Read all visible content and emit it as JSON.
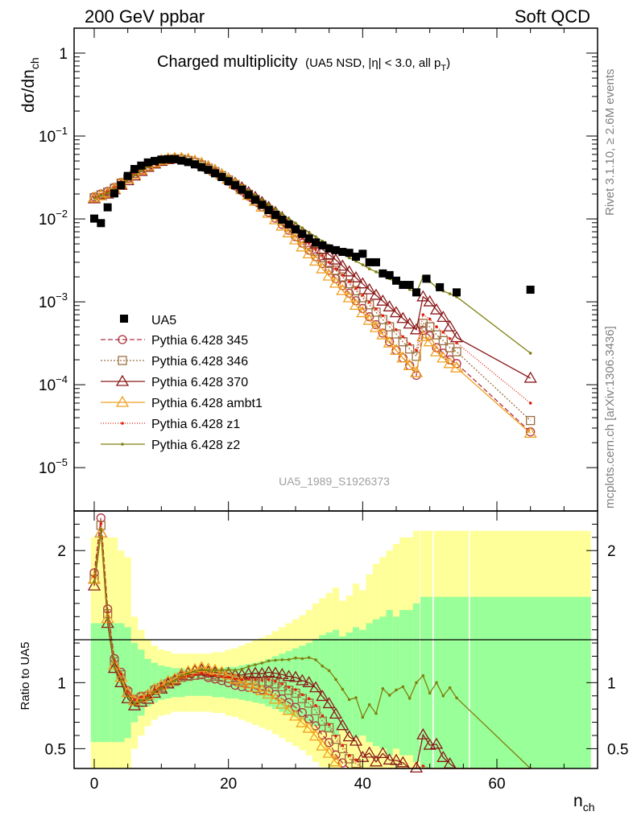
{
  "header": {
    "left": "200 GeV ppbar",
    "right": "Soft QCD",
    "side_top": "Rivet 3.1.10, ≥ 2.6M events",
    "side_bottom": "mcplots.cern.ch [arXiv:1306.3436]"
  },
  "chart_data": {
    "type": "scatter",
    "title_main": "Charged multiplicity",
    "title_sub": "(UA5 NSD, |η| < 3.0, all p",
    "title_sub_sub": "T",
    "title_sub_end": ")",
    "ylabel_main": "dσ/dn",
    "ylabel_sub": "ch",
    "xlabel_main": "n",
    "xlabel_sub": "ch",
    "ratio_ylabel": "Ratio to UA5",
    "watermark": "UA5_1989_S1926373",
    "y_scale": "log",
    "x_range": [
      -3,
      75
    ],
    "y_range": [
      3e-06,
      2
    ],
    "ratio_range": [
      0.35,
      2.3
    ],
    "x_ticks": [
      "0",
      "20",
      "40",
      "60"
    ],
    "x_tick_values": [
      0,
      20,
      40,
      60
    ],
    "y_ticks": [
      {
        "value": 1,
        "base": "1",
        "exp": ""
      },
      {
        "value": 0.1,
        "base": "10",
        "exp": "−1"
      },
      {
        "value": 0.01,
        "base": "10",
        "exp": "−2"
      },
      {
        "value": 0.001,
        "base": "10",
        "exp": "−3"
      },
      {
        "value": 0.0001,
        "base": "10",
        "exp": "−4"
      },
      {
        "value": 1e-05,
        "base": "10",
        "exp": "−5"
      }
    ],
    "ratio_ticks": [
      "2",
      "1",
      "0.5"
    ],
    "ratio_tick_values": [
      2,
      1,
      0.5
    ],
    "data": {
      "name": "UA5",
      "x": [
        0,
        1,
        2,
        3,
        4,
        5,
        6,
        7,
        8,
        9,
        10,
        11,
        12,
        13,
        14,
        15,
        16,
        17,
        18,
        19,
        20,
        21,
        22,
        23,
        24,
        25,
        26,
        27,
        28,
        29,
        30,
        31,
        32,
        33,
        34,
        35,
        36,
        37,
        38,
        39,
        40,
        41,
        42,
        43,
        44,
        45,
        46,
        47,
        48,
        49.5,
        51.5,
        54,
        65
      ],
      "y": [
        0.0101,
        0.0089,
        0.0138,
        0.0203,
        0.0255,
        0.033,
        0.04,
        0.044,
        0.048,
        0.05,
        0.052,
        0.0525,
        0.0525,
        0.0505,
        0.0485,
        0.0455,
        0.042,
        0.039,
        0.0355,
        0.032,
        0.0285,
        0.0255,
        0.0225,
        0.0195,
        0.017,
        0.0148,
        0.0128,
        0.0112,
        0.0098,
        0.0086,
        0.0075,
        0.0066,
        0.0058,
        0.0052,
        0.0048,
        0.0044,
        0.0042,
        0.004,
        0.0039,
        0.0035,
        0.0038,
        0.003,
        0.003,
        0.0022,
        0.0021,
        0.0018,
        0.0016,
        0.0016,
        0.0013,
        0.0019,
        0.0015,
        0.0013,
        0.0014
      ],
      "band_inner_upper": [
        1.45,
        1.45,
        1.45,
        1.45,
        1.45,
        1.42,
        1.3,
        1.25,
        1.18,
        1.15,
        1.13,
        1.12,
        1.11,
        1.11,
        1.1,
        1.1,
        1.1,
        1.1,
        1.11,
        1.11,
        1.12,
        1.12,
        1.13,
        1.14,
        1.15,
        1.16,
        1.18,
        1.2,
        1.22,
        1.24,
        1.26,
        1.28,
        1.3,
        1.33,
        1.36,
        1.38,
        1.4,
        1.35,
        1.38,
        1.42,
        1.4,
        1.45,
        1.48,
        1.5,
        1.55,
        1.5,
        1.55,
        1.55,
        1.6,
        1.65,
        1.65,
        1.65,
        1.65
      ],
      "band_outer_upper": [
        2.1,
        2.1,
        2.1,
        2.1,
        2.0,
        1.95,
        1.5,
        1.4,
        1.33,
        1.28,
        1.25,
        1.24,
        1.22,
        1.22,
        1.22,
        1.22,
        1.22,
        1.22,
        1.23,
        1.23,
        1.25,
        1.26,
        1.28,
        1.3,
        1.32,
        1.34,
        1.36,
        1.39,
        1.42,
        1.45,
        1.48,
        1.51,
        1.55,
        1.6,
        1.64,
        1.68,
        1.72,
        1.62,
        1.66,
        1.75,
        1.7,
        1.82,
        1.9,
        1.95,
        2.0,
        2.05,
        2.1,
        2.1,
        2.15,
        2.15,
        2.15,
        2.15,
        2.15
      ]
    },
    "series": [
      {
        "name": "Pythia 6.428 345",
        "color": "#b03040",
        "marker": "circle",
        "dash": "6,3",
        "x": [
          0,
          1,
          2,
          3,
          4,
          5,
          6,
          7,
          8,
          9,
          10,
          11,
          12,
          13,
          14,
          15,
          16,
          17,
          18,
          19,
          20,
          21,
          22,
          23,
          24,
          25,
          26,
          27,
          28,
          29,
          30,
          31,
          32,
          33,
          34,
          35,
          36,
          37,
          38,
          39,
          40,
          41,
          42,
          43,
          44,
          45,
          46,
          47,
          48,
          49,
          50,
          51,
          52,
          53,
          54,
          65
        ],
        "y": [
          0.0185,
          0.02,
          0.0215,
          0.024,
          0.0275,
          0.031,
          0.035,
          0.0395,
          0.0435,
          0.0475,
          0.0505,
          0.0525,
          0.0535,
          0.053,
          0.051,
          0.048,
          0.0445,
          0.0405,
          0.0365,
          0.0325,
          0.0285,
          0.025,
          0.0218,
          0.0188,
          0.0162,
          0.014,
          0.012,
          0.0102,
          0.0086,
          0.0073,
          0.0061,
          0.0051,
          0.0042,
          0.0035,
          0.0029,
          0.0024,
          0.0019,
          0.00157,
          0.00127,
          0.00103,
          0.00083,
          0.00066,
          0.00053,
          0.00042,
          0.00033,
          0.00026,
          0.00021,
          0.00017,
          0.00013,
          0.00045,
          0.00039,
          0.00028,
          0.00024,
          0.0002,
          0.00018,
          2.7e-05
        ]
      },
      {
        "name": "Pythia 6.428 346",
        "color": "#9a7040",
        "marker": "square",
        "dash": "2,2",
        "x": [
          0,
          1,
          2,
          3,
          4,
          5,
          6,
          7,
          8,
          9,
          10,
          11,
          12,
          13,
          14,
          15,
          16,
          17,
          18,
          19,
          20,
          21,
          22,
          23,
          24,
          25,
          26,
          27,
          28,
          29,
          30,
          31,
          32,
          33,
          34,
          35,
          36,
          37,
          38,
          39,
          40,
          41,
          42,
          43,
          44,
          45,
          46,
          47,
          48,
          49,
          50,
          51,
          52,
          53,
          54,
          65
        ],
        "y": [
          0.018,
          0.0195,
          0.021,
          0.0235,
          0.027,
          0.0305,
          0.0345,
          0.039,
          0.043,
          0.047,
          0.05,
          0.052,
          0.053,
          0.0525,
          0.0508,
          0.048,
          0.0448,
          0.041,
          0.0372,
          0.0333,
          0.0295,
          0.026,
          0.0228,
          0.0198,
          0.0172,
          0.0149,
          0.0129,
          0.0111,
          0.0095,
          0.0081,
          0.0069,
          0.0058,
          0.0049,
          0.0041,
          0.0034,
          0.0029,
          0.0024,
          0.002,
          0.00165,
          0.00136,
          0.00112,
          0.00092,
          0.00075,
          0.00061,
          0.0005,
          0.00041,
          0.00033,
          0.00027,
          0.00022,
          0.00055,
          0.0005,
          0.0004,
          0.00034,
          0.00028,
          0.00025,
          3.7e-05
        ]
      },
      {
        "name": "Pythia 6.428 370",
        "color": "#8b1a1a",
        "marker": "triangle",
        "dash": "",
        "x": [
          0,
          1,
          2,
          3,
          4,
          5,
          6,
          7,
          8,
          9,
          10,
          11,
          12,
          13,
          14,
          15,
          16,
          17,
          18,
          19,
          20,
          21,
          22,
          23,
          24,
          25,
          26,
          27,
          28,
          29,
          30,
          31,
          32,
          33,
          34,
          35,
          36,
          37,
          38,
          39,
          40,
          41,
          42,
          43,
          44,
          45,
          46,
          47,
          48,
          49,
          50,
          51,
          52,
          53,
          54,
          65
        ],
        "y": [
          0.0175,
          0.019,
          0.02,
          0.0225,
          0.0255,
          0.029,
          0.033,
          0.0375,
          0.042,
          0.046,
          0.0495,
          0.052,
          0.0535,
          0.0535,
          0.052,
          0.0495,
          0.046,
          0.0422,
          0.0382,
          0.0343,
          0.0305,
          0.027,
          0.0238,
          0.0208,
          0.0182,
          0.0158,
          0.0138,
          0.012,
          0.0104,
          0.009,
          0.0078,
          0.0067,
          0.0058,
          0.005,
          0.0043,
          0.0037,
          0.0032,
          0.0027,
          0.0023,
          0.00195,
          0.00165,
          0.0014,
          0.0012,
          0.00102,
          0.00087,
          0.00074,
          0.00063,
          0.00054,
          0.00046,
          0.00115,
          0.001,
          0.0008,
          0.00065,
          0.0005,
          0.00037,
          0.00012
        ]
      },
      {
        "name": "Pythia 6.428 ambt1",
        "color": "#f0a020",
        "marker": "triangle",
        "dash": "",
        "x": [
          0,
          1,
          2,
          3,
          4,
          5,
          6,
          7,
          8,
          9,
          10,
          11,
          12,
          13,
          14,
          15,
          16,
          17,
          18,
          19,
          20,
          21,
          22,
          23,
          24,
          25,
          26,
          27,
          28,
          29,
          30,
          31,
          32,
          33,
          34,
          35,
          36,
          37,
          38,
          39,
          40,
          41,
          42,
          43,
          44,
          45,
          46,
          47,
          48,
          49,
          50,
          51,
          52,
          53,
          54,
          65
        ],
        "y": [
          0.018,
          0.019,
          0.0205,
          0.023,
          0.0265,
          0.0305,
          0.0345,
          0.039,
          0.0435,
          0.0475,
          0.051,
          0.053,
          0.054,
          0.0538,
          0.0525,
          0.05,
          0.0468,
          0.043,
          0.0388,
          0.0345,
          0.0302,
          0.0262,
          0.0226,
          0.0193,
          0.0164,
          0.0139,
          0.0117,
          0.0098,
          0.0082,
          0.0068,
          0.0056,
          0.0046,
          0.0038,
          0.0031,
          0.0025,
          0.00205,
          0.00168,
          0.00137,
          0.00112,
          0.00091,
          0.00074,
          0.0006,
          0.00049,
          0.0004,
          0.00032,
          0.00026,
          0.00021,
          0.00017,
          0.00014,
          0.00038,
          0.00033,
          0.00025,
          0.00021,
          0.00018,
          0.00016,
          2.6e-05
        ]
      },
      {
        "name": "Pythia 6.428 z1",
        "color": "#e02010",
        "marker": "dot",
        "dash": "1,2",
        "x": [
          0,
          1,
          2,
          3,
          4,
          5,
          6,
          7,
          8,
          9,
          10,
          11,
          12,
          13,
          14,
          15,
          16,
          17,
          18,
          19,
          20,
          21,
          22,
          23,
          24,
          25,
          26,
          27,
          28,
          29,
          30,
          31,
          32,
          33,
          34,
          35,
          36,
          37,
          38,
          39,
          40,
          41,
          42,
          43,
          44,
          45,
          46,
          47,
          48,
          49,
          50,
          51,
          52,
          53,
          54,
          65
        ],
        "y": [
          0.0182,
          0.0196,
          0.0212,
          0.0237,
          0.0272,
          0.0308,
          0.0348,
          0.0392,
          0.0432,
          0.0472,
          0.0503,
          0.0522,
          0.0532,
          0.0528,
          0.051,
          0.0482,
          0.045,
          0.0412,
          0.0374,
          0.0335,
          0.0297,
          0.0262,
          0.023,
          0.02,
          0.0174,
          0.0151,
          0.0131,
          0.0113,
          0.0097,
          0.0083,
          0.0071,
          0.006,
          0.0051,
          0.0043,
          0.0036,
          0.003,
          0.0025,
          0.0021,
          0.00175,
          0.00145,
          0.0012,
          0.00099,
          0.00082,
          0.00068,
          0.00056,
          0.00046,
          0.00038,
          0.00031,
          0.00026,
          0.0007,
          0.00062,
          0.0005,
          0.00043,
          0.00036,
          0.00032,
          6e-05
        ]
      },
      {
        "name": "Pythia 6.428 z2",
        "color": "#808010",
        "marker": "dot",
        "dash": "",
        "x": [
          0,
          1,
          2,
          3,
          4,
          5,
          6,
          7,
          8,
          9,
          10,
          11,
          12,
          13,
          14,
          15,
          16,
          17,
          18,
          19,
          20,
          21,
          22,
          23,
          24,
          25,
          26,
          27,
          28,
          29,
          30,
          31,
          32,
          33,
          34,
          35,
          36,
          37,
          38,
          39,
          40,
          41,
          42,
          43,
          44,
          45,
          46,
          47,
          48,
          49,
          50,
          51,
          52,
          53,
          54,
          65
        ],
        "y": [
          0.0178,
          0.0192,
          0.0204,
          0.0228,
          0.026,
          0.0296,
          0.0336,
          0.038,
          0.0424,
          0.0465,
          0.0498,
          0.052,
          0.0532,
          0.0532,
          0.0518,
          0.0494,
          0.0462,
          0.0426,
          0.0388,
          0.035,
          0.0313,
          0.0279,
          0.0248,
          0.0219,
          0.0193,
          0.017,
          0.0149,
          0.0131,
          0.0115,
          0.0101,
          0.0089,
          0.0078,
          0.0069,
          0.0061,
          0.0054,
          0.0048,
          0.0043,
          0.0038,
          0.0034,
          0.0031,
          0.0028,
          0.0025,
          0.0023,
          0.0021,
          0.0019,
          0.0017,
          0.00155,
          0.00141,
          0.0013,
          0.002,
          0.00175,
          0.0015,
          0.00135,
          0.00125,
          0.00115,
          0.00024
        ]
      }
    ]
  }
}
